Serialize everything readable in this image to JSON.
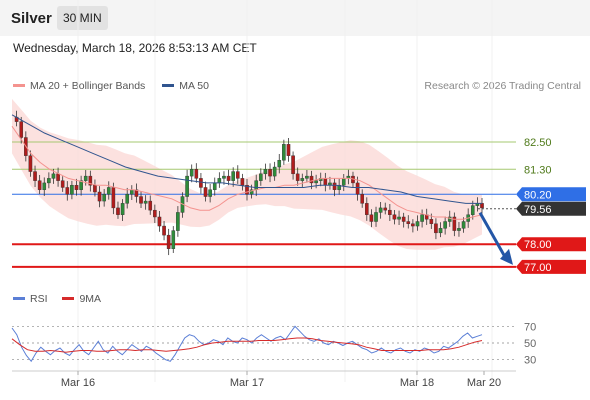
{
  "header": {
    "instrument": "Silver",
    "interval": "30 MIN"
  },
  "datetime": "Wednesday, March 18, 2026 8:53:13 AM CET",
  "copyright": "Research © 2026 Trading Central",
  "legend_main": [
    {
      "label": "MA 20 + Bollinger Bands",
      "color": "#f4938f"
    },
    {
      "label": "MA 50",
      "color": "#31558f"
    }
  ],
  "legend_rsi": [
    {
      "label": "RSI",
      "color": "#5b7fd6"
    },
    {
      "label": "9MA",
      "color": "#d62b2b"
    }
  ],
  "chart_data": {
    "type": "candlestick",
    "x_tick_labels": [
      "Mar 16",
      "Mar 17",
      "Mar 18",
      "Mar 20"
    ],
    "ylim": [
      76.6,
      84.0
    ],
    "resistance_levels": [
      82.5,
      81.3
    ],
    "support_levels": [
      78.0,
      77.0
    ],
    "pivot": 80.2,
    "last_price": 79.56,
    "level_labels": [
      "82.50",
      "81.30",
      "80.20",
      "79.56",
      "78.00",
      "77.00"
    ],
    "forecast": {
      "direction": "down",
      "target": 77.0
    },
    "price_path": [
      83.6,
      83.4,
      82.7,
      81.9,
      81.2,
      80.8,
      80.4,
      80.7,
      80.9,
      81.1,
      80.8,
      80.5,
      80.2,
      80.6,
      80.4,
      80.8,
      81.0,
      80.6,
      80.3,
      79.9,
      80.2,
      80.5,
      79.6,
      79.3,
      79.8,
      80.2,
      80.4,
      80.1,
      79.8,
      79.9,
      79.5,
      79.2,
      78.8,
      78.4,
      77.8,
      78.6,
      79.4,
      80.1,
      81.0,
      81.3,
      80.9,
      80.5,
      80.1,
      80.4,
      80.7,
      80.9,
      81.0,
      80.8,
      81.2,
      80.9,
      80.6,
      80.2,
      80.4,
      80.8,
      81.1,
      81.3,
      81.0,
      81.4,
      81.7,
      82.4,
      81.9,
      81.1,
      80.8,
      80.9,
      81.0,
      80.7,
      80.8,
      80.9,
      80.6,
      80.7,
      80.4,
      80.6,
      80.9,
      81.0,
      80.7,
      80.2,
      79.8,
      79.3,
      79.0,
      79.4,
      79.6,
      79.5,
      79.3,
      79.1,
      79.2,
      79.0,
      78.9,
      78.8,
      79.0,
      79.3,
      79.1,
      78.9,
      78.5,
      78.7,
      79.0,
      79.2,
      78.6,
      78.7,
      79.0,
      79.3,
      79.7,
      79.8,
      79.6
    ],
    "ma20_path": [
      83.2,
      82.6,
      82.0,
      81.6,
      81.3,
      81.1,
      80.9,
      80.8,
      80.7,
      80.6,
      80.6,
      80.5,
      80.4,
      80.4,
      80.3,
      80.2,
      80.1,
      80.0,
      79.8,
      79.6,
      79.5,
      79.5,
      79.7,
      80.0,
      80.2,
      80.3,
      80.4,
      80.5,
      80.5,
      80.6,
      80.6,
      80.7,
      80.8,
      80.9,
      80.9,
      80.9,
      80.9,
      80.8,
      80.6,
      80.3,
      80.0,
      79.7,
      79.5,
      79.4,
      79.3,
      79.2,
      79.2,
      79.1,
      79.1,
      79.2,
      79.3
    ],
    "ma50_path": [
      83.7,
      83.3,
      82.9,
      82.6,
      82.3,
      82.0,
      81.7,
      81.4,
      81.2,
      81.0,
      80.9,
      80.8,
      80.7,
      80.7,
      80.6,
      80.5,
      80.5,
      80.5,
      80.5,
      80.6,
      80.6,
      80.5,
      80.5,
      80.4,
      80.3,
      80.1,
      80.0,
      79.9,
      79.8,
      79.8
    ],
    "rsi": {
      "ylim": [
        20,
        80
      ],
      "y_tick_labels": [
        "70",
        "50",
        "30"
      ],
      "y_ticks": [
        70,
        50,
        30
      ],
      "rsi_path": [
        68,
        60,
        45,
        35,
        28,
        38,
        45,
        40,
        36,
        41,
        44,
        38,
        35,
        42,
        48,
        40,
        36,
        44,
        52,
        42,
        38,
        46,
        40,
        36,
        42,
        48,
        44,
        40,
        46,
        43,
        38,
        34,
        30,
        28,
        36,
        46,
        56,
        60,
        58,
        52,
        48,
        50,
        54,
        52,
        48,
        56,
        52,
        50,
        56,
        54,
        50,
        56,
        60,
        56,
        52,
        56,
        58,
        54,
        62,
        70,
        64,
        58,
        54,
        52,
        55,
        50,
        48,
        52,
        50,
        47,
        50,
        52,
        48,
        44,
        42,
        38,
        40,
        44,
        40,
        38,
        42,
        44,
        40,
        38,
        42,
        40,
        44,
        42,
        38,
        40,
        46,
        44,
        48,
        52,
        58,
        62,
        56,
        58,
        60
      ],
      "ma9_path": [
        55,
        48,
        42,
        40,
        40,
        41,
        40,
        39,
        40,
        41,
        41,
        40,
        40,
        41,
        42,
        42,
        41,
        42,
        42,
        41,
        40,
        41,
        42,
        43,
        45,
        48,
        50,
        51,
        52,
        52,
        52,
        52,
        53,
        53,
        53,
        54,
        55,
        56,
        56,
        55,
        53,
        52,
        51,
        50,
        49,
        48,
        45,
        43,
        41,
        41,
        41,
        41,
        41,
        41,
        42,
        42,
        42,
        43,
        45,
        48,
        51,
        53
      ]
    }
  }
}
